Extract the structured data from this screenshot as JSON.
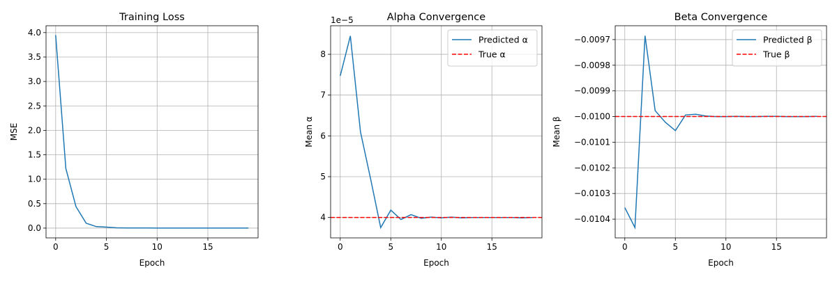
{
  "chart_data": [
    {
      "type": "line",
      "title": "Training Loss",
      "xlabel": "Epoch",
      "ylabel": "MSE",
      "x": [
        0,
        1,
        2,
        3,
        4,
        5,
        6,
        7,
        8,
        9,
        10,
        11,
        12,
        13,
        14,
        15,
        16,
        17,
        18,
        19
      ],
      "series": [
        {
          "name": "Training Loss",
          "style": "solid",
          "color": "#1f77b4",
          "values": [
            3.95,
            1.22,
            0.44,
            0.1,
            0.03,
            0.02,
            0.006,
            0.004,
            0.002,
            0.002,
            0.001,
            0.001,
            0.001,
            0.001,
            0.001,
            0.001,
            0.001,
            0.001,
            0.001,
            0.001
          ]
        }
      ],
      "xlim": [
        -0.95,
        19.95
      ],
      "ylim": [
        -0.2,
        4.14
      ],
      "xticks": [
        0,
        5,
        10,
        15
      ],
      "yticks": [
        0.0,
        0.5,
        1.0,
        1.5,
        2.0,
        2.5,
        3.0,
        3.5,
        4.0
      ],
      "ytick_labels": [
        "0.0",
        "0.5",
        "1.0",
        "1.5",
        "2.0",
        "2.5",
        "3.0",
        "3.5",
        "4.0"
      ],
      "grid": true
    },
    {
      "type": "line",
      "title": "Alpha Convergence",
      "xlabel": "Epoch",
      "ylabel": "Mean α",
      "offset_label": "1e−5",
      "x": [
        0,
        1,
        2,
        3,
        4,
        5,
        6,
        7,
        8,
        9,
        10,
        11,
        12,
        13,
        14,
        15,
        16,
        17,
        18,
        19
      ],
      "series": [
        {
          "name": "Predicted α",
          "style": "solid",
          "color": "#1f77b4",
          "values": [
            7.47,
            8.45,
            6.1,
            4.95,
            3.75,
            4.18,
            3.95,
            4.07,
            3.98,
            4.01,
            3.99,
            4.01,
            3.99,
            4.0,
            4.0,
            4.0,
            4.0,
            4.0,
            3.99,
            4.0
          ]
        },
        {
          "name": "True α",
          "style": "dashed",
          "color": "#ff0000",
          "hline": 4.0
        }
      ],
      "xlim": [
        -0.95,
        19.95
      ],
      "ylim": [
        3.5,
        8.7
      ],
      "xticks": [
        0,
        5,
        10,
        15
      ],
      "yticks": [
        4,
        5,
        6,
        7,
        8
      ],
      "ytick_labels": [
        "4",
        "5",
        "6",
        "7",
        "8"
      ],
      "legend": "top-right",
      "grid": true
    },
    {
      "type": "line",
      "title": "Beta Convergence",
      "xlabel": "Epoch",
      "ylabel": "Mean β",
      "x": [
        0,
        1,
        2,
        3,
        4,
        5,
        6,
        7,
        8,
        9,
        10,
        11,
        12,
        13,
        14,
        15,
        16,
        17,
        18,
        19
      ],
      "series": [
        {
          "name": "Predicted β",
          "style": "solid",
          "color": "#1f77b4",
          "values": [
            -0.010355,
            -0.010433,
            -0.009685,
            -0.009977,
            -0.010022,
            -0.010055,
            -0.009994,
            -0.009991,
            -0.009998,
            -0.01,
            -0.01,
            -0.009999,
            -0.01,
            -0.01,
            -0.009999,
            -0.009999,
            -0.01,
            -0.01,
            -0.01,
            -0.009999
          ]
        },
        {
          "name": "True β",
          "style": "dashed",
          "color": "#ff0000",
          "hline": -0.01
        }
      ],
      "xlim": [
        -0.95,
        19.95
      ],
      "ylim": [
        -0.010473,
        -0.009646
      ],
      "xticks": [
        0,
        5,
        10,
        15
      ],
      "yticks": [
        -0.0104,
        -0.0103,
        -0.0102,
        -0.0101,
        -0.01,
        -0.0099,
        -0.0098,
        -0.0097
      ],
      "ytick_labels": [
        "−0.0104",
        "−0.0103",
        "−0.0102",
        "−0.0101",
        "−0.0100",
        "−0.0099",
        "−0.0098",
        "−0.0097"
      ],
      "legend": "top-right",
      "grid": true
    }
  ]
}
